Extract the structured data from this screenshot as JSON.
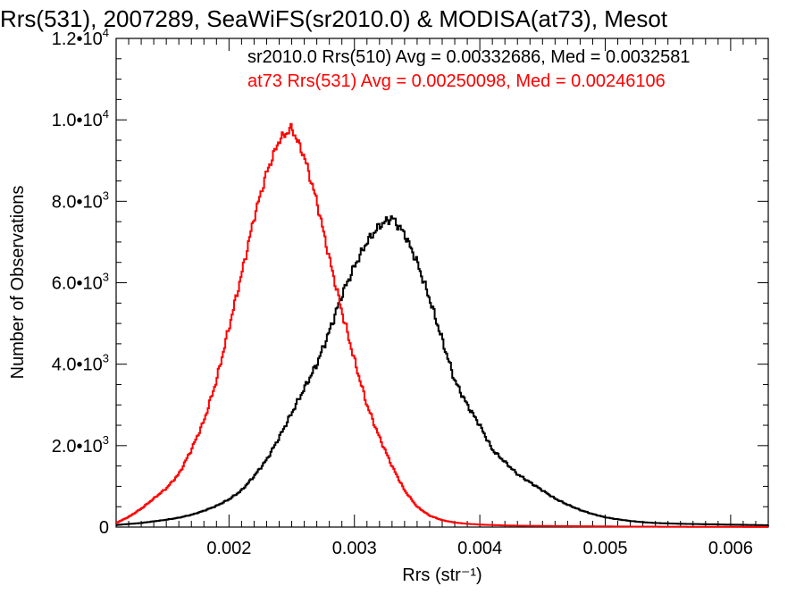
{
  "chart_data": {
    "type": "line",
    "title": "Rrs(531), 2007289, SeaWiFS(sr2010.0) & MODISA(at73), Mesot",
    "xlabel": "Rrs (str⁻¹)",
    "ylabel": "Number of Observations",
    "xlim": [
      0.0011,
      0.0063
    ],
    "ylim": [
      0,
      12000
    ],
    "grid": false,
    "x_ticks": [
      {
        "value": 0.002,
        "label": "0.002"
      },
      {
        "value": 0.003,
        "label": "0.003"
      },
      {
        "value": 0.004,
        "label": "0.004"
      },
      {
        "value": 0.005,
        "label": "0.005"
      },
      {
        "value": 0.006,
        "label": "0.006"
      }
    ],
    "y_ticks": [
      {
        "value": 0,
        "mant": "0",
        "exp": ""
      },
      {
        "value": 2000,
        "mant": "2.0•10",
        "exp": "3"
      },
      {
        "value": 4000,
        "mant": "4.0•10",
        "exp": "3"
      },
      {
        "value": 6000,
        "mant": "6.0•10",
        "exp": "3"
      },
      {
        "value": 8000,
        "mant": "8.0•10",
        "exp": "3"
      },
      {
        "value": 10000,
        "mant": "1.0•10",
        "exp": "4"
      },
      {
        "value": 12000,
        "mant": "1.2•10",
        "exp": "4"
      }
    ],
    "annotations": [
      {
        "text": "sr2010.0 Rrs(510) Avg = 0.00332686, Med = 0.0032581",
        "color": "#000000"
      },
      {
        "text": "at73 Rrs(531) Avg = 0.00250098, Med = 0.00246106",
        "color": "#ff0000"
      }
    ],
    "series": [
      {
        "color": "#000000",
        "points": [
          [
            0.0011,
            50
          ],
          [
            0.0013,
            100
          ],
          [
            0.0015,
            180
          ],
          [
            0.0016,
            230
          ],
          [
            0.0017,
            300
          ],
          [
            0.0018,
            400
          ],
          [
            0.0019,
            520
          ],
          [
            0.002,
            680
          ],
          [
            0.0021,
            900
          ],
          [
            0.0022,
            1250
          ],
          [
            0.0023,
            1650
          ],
          [
            0.0024,
            2200
          ],
          [
            0.0025,
            2800
          ],
          [
            0.0026,
            3400
          ],
          [
            0.0027,
            4000
          ],
          [
            0.0028,
            4800
          ],
          [
            0.0029,
            5700
          ],
          [
            0.003,
            6400
          ],
          [
            0.0031,
            7000
          ],
          [
            0.0032,
            7400
          ],
          [
            0.0033,
            7600
          ],
          [
            0.0034,
            7200
          ],
          [
            0.0035,
            6500
          ],
          [
            0.0036,
            5600
          ],
          [
            0.0037,
            4600
          ],
          [
            0.0038,
            3600
          ],
          [
            0.0039,
            3000
          ],
          [
            0.004,
            2500
          ],
          [
            0.0041,
            1900
          ],
          [
            0.0042,
            1600
          ],
          [
            0.0043,
            1300
          ],
          [
            0.0044,
            1100
          ],
          [
            0.0045,
            900
          ],
          [
            0.0046,
            700
          ],
          [
            0.0047,
            550
          ],
          [
            0.0048,
            420
          ],
          [
            0.0049,
            320
          ],
          [
            0.005,
            240
          ],
          [
            0.0051,
            190
          ],
          [
            0.0052,
            150
          ],
          [
            0.0053,
            120
          ],
          [
            0.0054,
            100
          ],
          [
            0.0055,
            90
          ],
          [
            0.0056,
            80
          ],
          [
            0.0057,
            75
          ],
          [
            0.0058,
            70
          ],
          [
            0.0059,
            65
          ],
          [
            0.006,
            60
          ],
          [
            0.0061,
            55
          ],
          [
            0.0062,
            50
          ],
          [
            0.0063,
            45
          ]
        ]
      },
      {
        "color": "#ff0000",
        "points": [
          [
            0.0011,
            100
          ],
          [
            0.0012,
            250
          ],
          [
            0.0013,
            450
          ],
          [
            0.0014,
            700
          ],
          [
            0.0015,
            950
          ],
          [
            0.0016,
            1300
          ],
          [
            0.0017,
            1900
          ],
          [
            0.0018,
            2600
          ],
          [
            0.0019,
            3600
          ],
          [
            0.002,
            4900
          ],
          [
            0.0021,
            6200
          ],
          [
            0.0022,
            7600
          ],
          [
            0.0023,
            8700
          ],
          [
            0.0024,
            9500
          ],
          [
            0.0025,
            9800
          ],
          [
            0.0026,
            9100
          ],
          [
            0.0027,
            8000
          ],
          [
            0.0028,
            6600
          ],
          [
            0.0029,
            5300
          ],
          [
            0.003,
            4100
          ],
          [
            0.0031,
            3000
          ],
          [
            0.0032,
            2200
          ],
          [
            0.0033,
            1500
          ],
          [
            0.0034,
            900
          ],
          [
            0.0035,
            500
          ],
          [
            0.0036,
            280
          ],
          [
            0.0037,
            170
          ],
          [
            0.0038,
            110
          ],
          [
            0.0039,
            80
          ],
          [
            0.004,
            60
          ],
          [
            0.0041,
            50
          ],
          [
            0.0042,
            40
          ],
          [
            0.0043,
            35
          ],
          [
            0.0044,
            30
          ],
          [
            0.0045,
            28
          ],
          [
            0.0046,
            25
          ],
          [
            0.0047,
            22
          ],
          [
            0.0048,
            20
          ],
          [
            0.0049,
            18
          ],
          [
            0.005,
            16
          ],
          [
            0.0051,
            14
          ],
          [
            0.0052,
            12
          ],
          [
            0.0053,
            10
          ],
          [
            0.0054,
            10
          ],
          [
            0.0055,
            8
          ],
          [
            0.0056,
            8
          ],
          [
            0.0057,
            6
          ],
          [
            0.0058,
            6
          ],
          [
            0.0059,
            5
          ],
          [
            0.006,
            5
          ],
          [
            0.0061,
            4
          ],
          [
            0.0062,
            4
          ],
          [
            0.0063,
            3
          ]
        ]
      }
    ]
  }
}
